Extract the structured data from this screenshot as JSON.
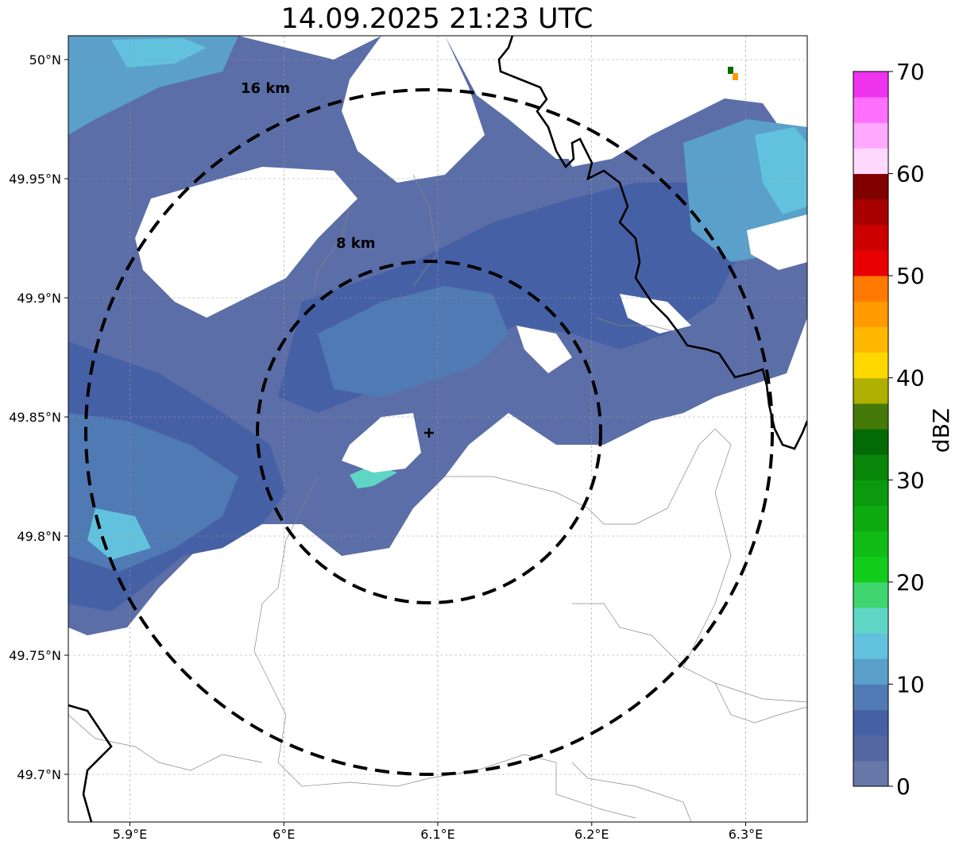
{
  "title": "14.09.2025 21:23 UTC",
  "map": {
    "extent": {
      "lon_min": 5.86,
      "lon_max": 6.34,
      "lat_min": 49.68,
      "lat_max": 50.01
    },
    "x_ticks": [
      {
        "value": 5.9,
        "label": "5.9°E"
      },
      {
        "value": 6.0,
        "label": "6°E"
      },
      {
        "value": 6.1,
        "label": "6.1°E"
      },
      {
        "value": 6.2,
        "label": "6.2°E"
      },
      {
        "value": 6.3,
        "label": "6.3°E"
      }
    ],
    "y_ticks": [
      {
        "value": 50.0,
        "label": "50°N"
      },
      {
        "value": 49.95,
        "label": "49.95°N"
      },
      {
        "value": 49.9,
        "label": "49.9°N"
      },
      {
        "value": 49.85,
        "label": "49.85°N"
      },
      {
        "value": 49.8,
        "label": "49.8°N"
      },
      {
        "value": 49.75,
        "label": "49.75°N"
      },
      {
        "value": 49.7,
        "label": "49.7°N"
      }
    ],
    "gridlines": true,
    "center": {
      "lon": 6.094,
      "lat": 49.843
    },
    "rings": [
      {
        "radius_km": 16,
        "label": "16 km"
      },
      {
        "radius_km": 8,
        "label": "8 km"
      }
    ],
    "border_color": "#000000",
    "no_data_color": "#ffffff"
  },
  "colorbar": {
    "label": "dBZ",
    "min": 0,
    "max": 70,
    "ticks": [
      "0",
      "10",
      "20",
      "30",
      "40",
      "50",
      "60",
      "70"
    ],
    "colors": [
      "#6677a8",
      "#5567a2",
      "#4660a5",
      "#4f7ab3",
      "#5aa0ca",
      "#62c2dd",
      "#5fd6c5",
      "#3fd670",
      "#12cc1c",
      "#10bb16",
      "#0daa12",
      "#0b9a0e",
      "#08860a",
      "#046a06",
      "#467a08",
      "#b0b000",
      "#ffd800",
      "#ffb800",
      "#ff9a00",
      "#ff7a00",
      "#e80000",
      "#cc0000",
      "#a80000",
      "#800000",
      "#ffd9ff",
      "#ffaaff",
      "#ff70ff",
      "#ee33ee"
    ]
  }
}
